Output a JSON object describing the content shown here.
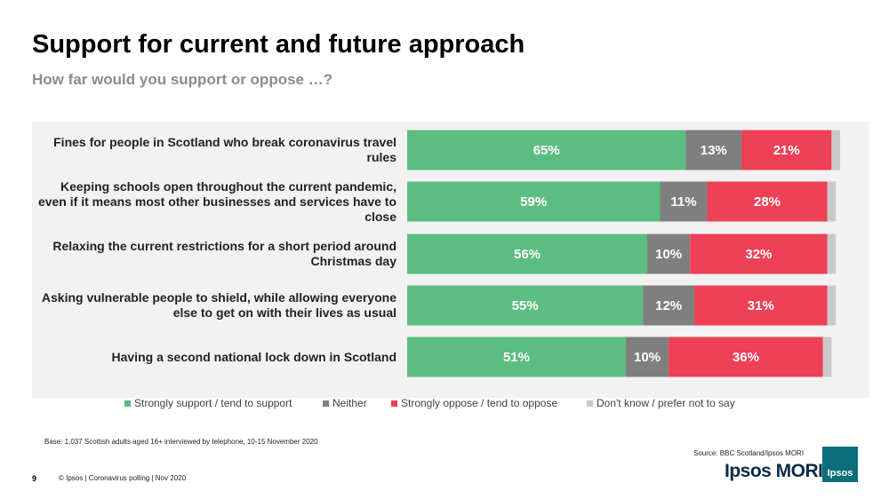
{
  "chart_data": {
    "type": "stacked-barh",
    "title": "Support for current and future approach",
    "subtitle": "How far would you support or oppose …?",
    "categories": [
      "Fines for people in Scotland who break coronavirus travel rules",
      "Keeping schools open throughout the current pandemic, even if it means most other businesses and services have to close",
      "Relaxing the current restrictions for a short period around Christmas day",
      "Asking vulnerable people to shield, while allowing everyone else to get on with their lives as usual",
      "Having a second national lock down in Scotland"
    ],
    "series": [
      {
        "name": "Strongly support / tend to support",
        "color": "#5cbd80",
        "values": [
          65,
          59,
          56,
          55,
          51
        ],
        "value_labels": [
          "65%",
          "59%",
          "56%",
          "55%",
          "51%"
        ]
      },
      {
        "name": "Neither",
        "color": "#7f7f7f",
        "values": [
          13,
          11,
          10,
          12,
          10
        ],
        "value_labels": [
          "13%",
          "11%",
          "10%",
          "12%",
          "10%"
        ]
      },
      {
        "name": "Strongly oppose / tend to oppose",
        "color": "#ee4056",
        "values": [
          21,
          28,
          32,
          31,
          36
        ],
        "value_labels": [
          "21%",
          "28%",
          "32%",
          "31%",
          "36%"
        ]
      },
      {
        "name": "Don't know / prefer not to say",
        "color": "#c9c9c9",
        "values": [
          2,
          2,
          2,
          2,
          2
        ]
      }
    ],
    "legend": "bottom"
  },
  "slide": {
    "footnote": "Base: 1,037 Scottish adults aged 16+ interviewed by telephone, 10-15 November 2020",
    "source": "Source: BBC Scotland/Ipsos MORI",
    "page_number": "9",
    "copyright": "© Ipsos | Coronavirus polling | Nov 2020",
    "logo": "Ipsos MORI",
    "badge": "Ipsos"
  }
}
